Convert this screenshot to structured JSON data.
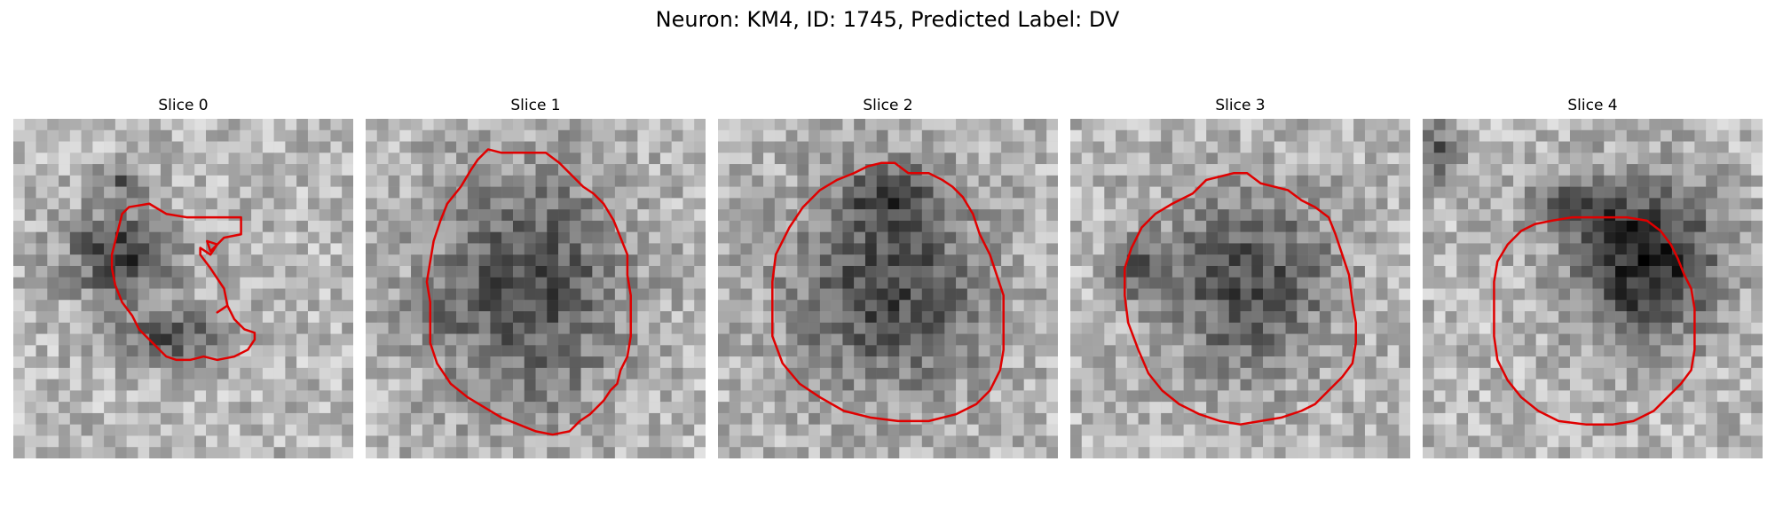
{
  "figure": {
    "title": "Neuron: KM4, ID: 1745, Predicted Label: DV",
    "overlay_color": "#e00000",
    "image_colormap": "grayscale",
    "panels": [
      {
        "title": "Slice 0",
        "dark_blobs": [
          [
            0.32,
            0.4,
            0.2,
            0.16,
            0.48
          ],
          [
            0.46,
            0.64,
            0.2,
            0.1,
            0.4
          ],
          [
            0.32,
            0.18,
            0.1,
            0.06,
            0.3
          ]
        ],
        "contour": [
          [
            0.34,
            0.26
          ],
          [
            0.4,
            0.25
          ],
          [
            0.45,
            0.28
          ],
          [
            0.51,
            0.29
          ],
          [
            0.67,
            0.29
          ],
          [
            0.67,
            0.34
          ],
          [
            0.62,
            0.35
          ],
          [
            0.6,
            0.37
          ],
          [
            0.57,
            0.36
          ],
          [
            0.58,
            0.39
          ],
          [
            0.6,
            0.37
          ],
          [
            0.58,
            0.4
          ],
          [
            0.55,
            0.38
          ],
          [
            0.55,
            0.4
          ],
          [
            0.58,
            0.44
          ],
          [
            0.6,
            0.47
          ],
          [
            0.62,
            0.5
          ],
          [
            0.63,
            0.55
          ],
          [
            0.6,
            0.57
          ],
          [
            0.63,
            0.55
          ],
          [
            0.65,
            0.59
          ],
          [
            0.68,
            0.62
          ],
          [
            0.71,
            0.63
          ],
          [
            0.71,
            0.65
          ],
          [
            0.69,
            0.68
          ],
          [
            0.65,
            0.7
          ],
          [
            0.6,
            0.71
          ],
          [
            0.56,
            0.7
          ],
          [
            0.52,
            0.71
          ],
          [
            0.48,
            0.71
          ],
          [
            0.45,
            0.7
          ],
          [
            0.41,
            0.66
          ],
          [
            0.37,
            0.62
          ],
          [
            0.35,
            0.58
          ],
          [
            0.32,
            0.54
          ],
          [
            0.3,
            0.49
          ],
          [
            0.29,
            0.44
          ],
          [
            0.29,
            0.4
          ],
          [
            0.3,
            0.36
          ],
          [
            0.31,
            0.32
          ],
          [
            0.32,
            0.28
          ]
        ]
      },
      {
        "title": "Slice 1",
        "dark_blobs": [
          [
            0.48,
            0.5,
            0.36,
            0.44,
            0.42
          ],
          [
            0.2,
            0.58,
            0.08,
            0.08,
            0.25
          ]
        ],
        "contour": [
          [
            0.36,
            0.09
          ],
          [
            0.4,
            0.1
          ],
          [
            0.53,
            0.1
          ],
          [
            0.57,
            0.13
          ],
          [
            0.6,
            0.16
          ],
          [
            0.64,
            0.2
          ],
          [
            0.67,
            0.22
          ],
          [
            0.7,
            0.25
          ],
          [
            0.73,
            0.3
          ],
          [
            0.75,
            0.35
          ],
          [
            0.77,
            0.4
          ],
          [
            0.77,
            0.46
          ],
          [
            0.78,
            0.52
          ],
          [
            0.78,
            0.58
          ],
          [
            0.78,
            0.64
          ],
          [
            0.77,
            0.7
          ],
          [
            0.75,
            0.74
          ],
          [
            0.74,
            0.78
          ],
          [
            0.72,
            0.8
          ],
          [
            0.7,
            0.83
          ],
          [
            0.66,
            0.87
          ],
          [
            0.63,
            0.89
          ],
          [
            0.6,
            0.92
          ],
          [
            0.55,
            0.93
          ],
          [
            0.5,
            0.92
          ],
          [
            0.45,
            0.9
          ],
          [
            0.4,
            0.88
          ],
          [
            0.35,
            0.85
          ],
          [
            0.3,
            0.82
          ],
          [
            0.25,
            0.78
          ],
          [
            0.21,
            0.72
          ],
          [
            0.19,
            0.66
          ],
          [
            0.19,
            0.6
          ],
          [
            0.19,
            0.54
          ],
          [
            0.18,
            0.48
          ],
          [
            0.19,
            0.42
          ],
          [
            0.2,
            0.36
          ],
          [
            0.22,
            0.3
          ],
          [
            0.24,
            0.25
          ],
          [
            0.28,
            0.2
          ],
          [
            0.31,
            0.15
          ],
          [
            0.33,
            0.12
          ]
        ]
      },
      {
        "title": "Slice 2",
        "dark_blobs": [
          [
            0.5,
            0.5,
            0.36,
            0.4,
            0.44
          ],
          [
            0.5,
            0.22,
            0.16,
            0.1,
            0.3
          ]
        ],
        "contour": [
          [
            0.4,
            0.16
          ],
          [
            0.44,
            0.14
          ],
          [
            0.48,
            0.13
          ],
          [
            0.52,
            0.13
          ],
          [
            0.56,
            0.16
          ],
          [
            0.62,
            0.16
          ],
          [
            0.66,
            0.18
          ],
          [
            0.69,
            0.2
          ],
          [
            0.72,
            0.23
          ],
          [
            0.75,
            0.28
          ],
          [
            0.77,
            0.34
          ],
          [
            0.8,
            0.4
          ],
          [
            0.82,
            0.46
          ],
          [
            0.84,
            0.52
          ],
          [
            0.84,
            0.6
          ],
          [
            0.84,
            0.68
          ],
          [
            0.83,
            0.74
          ],
          [
            0.8,
            0.8
          ],
          [
            0.76,
            0.84
          ],
          [
            0.7,
            0.87
          ],
          [
            0.62,
            0.89
          ],
          [
            0.53,
            0.89
          ],
          [
            0.45,
            0.88
          ],
          [
            0.37,
            0.86
          ],
          [
            0.3,
            0.82
          ],
          [
            0.24,
            0.78
          ],
          [
            0.19,
            0.72
          ],
          [
            0.16,
            0.64
          ],
          [
            0.16,
            0.56
          ],
          [
            0.16,
            0.48
          ],
          [
            0.17,
            0.4
          ],
          [
            0.21,
            0.32
          ],
          [
            0.25,
            0.26
          ],
          [
            0.3,
            0.21
          ],
          [
            0.35,
            0.18
          ]
        ]
      },
      {
        "title": "Slice 3",
        "dark_blobs": [
          [
            0.52,
            0.48,
            0.32,
            0.34,
            0.42
          ],
          [
            0.2,
            0.44,
            0.09,
            0.1,
            0.32
          ]
        ],
        "contour": [
          [
            0.36,
            0.22
          ],
          [
            0.4,
            0.18
          ],
          [
            0.44,
            0.17
          ],
          [
            0.48,
            0.16
          ],
          [
            0.52,
            0.16
          ],
          [
            0.56,
            0.19
          ],
          [
            0.6,
            0.2
          ],
          [
            0.64,
            0.21
          ],
          [
            0.68,
            0.24
          ],
          [
            0.72,
            0.26
          ],
          [
            0.76,
            0.29
          ],
          [
            0.78,
            0.34
          ],
          [
            0.8,
            0.4
          ],
          [
            0.82,
            0.46
          ],
          [
            0.83,
            0.54
          ],
          [
            0.84,
            0.6
          ],
          [
            0.84,
            0.66
          ],
          [
            0.83,
            0.72
          ],
          [
            0.8,
            0.76
          ],
          [
            0.76,
            0.8
          ],
          [
            0.72,
            0.84
          ],
          [
            0.68,
            0.86
          ],
          [
            0.62,
            0.88
          ],
          [
            0.56,
            0.89
          ],
          [
            0.5,
            0.9
          ],
          [
            0.44,
            0.89
          ],
          [
            0.38,
            0.87
          ],
          [
            0.32,
            0.84
          ],
          [
            0.27,
            0.8
          ],
          [
            0.23,
            0.75
          ],
          [
            0.2,
            0.68
          ],
          [
            0.17,
            0.6
          ],
          [
            0.16,
            0.52
          ],
          [
            0.16,
            0.44
          ],
          [
            0.18,
            0.38
          ],
          [
            0.21,
            0.32
          ],
          [
            0.25,
            0.28
          ],
          [
            0.3,
            0.25
          ]
        ]
      },
      {
        "title": "Slice 4",
        "dark_blobs": [
          [
            0.66,
            0.42,
            0.26,
            0.28,
            0.62
          ],
          [
            0.44,
            0.26,
            0.18,
            0.1,
            0.3
          ],
          [
            0.06,
            0.1,
            0.08,
            0.1,
            0.4
          ]
        ],
        "contour": [
          [
            0.38,
            0.3
          ],
          [
            0.44,
            0.29
          ],
          [
            0.52,
            0.29
          ],
          [
            0.6,
            0.29
          ],
          [
            0.66,
            0.3
          ],
          [
            0.7,
            0.33
          ],
          [
            0.73,
            0.37
          ],
          [
            0.75,
            0.41
          ],
          [
            0.77,
            0.46
          ],
          [
            0.79,
            0.5
          ],
          [
            0.8,
            0.56
          ],
          [
            0.8,
            0.62
          ],
          [
            0.8,
            0.68
          ],
          [
            0.79,
            0.74
          ],
          [
            0.76,
            0.78
          ],
          [
            0.72,
            0.82
          ],
          [
            0.68,
            0.86
          ],
          [
            0.62,
            0.89
          ],
          [
            0.56,
            0.9
          ],
          [
            0.48,
            0.9
          ],
          [
            0.4,
            0.89
          ],
          [
            0.34,
            0.86
          ],
          [
            0.29,
            0.82
          ],
          [
            0.25,
            0.77
          ],
          [
            0.22,
            0.71
          ],
          [
            0.21,
            0.64
          ],
          [
            0.21,
            0.56
          ],
          [
            0.21,
            0.48
          ],
          [
            0.22,
            0.42
          ],
          [
            0.25,
            0.37
          ],
          [
            0.29,
            0.33
          ],
          [
            0.33,
            0.31
          ]
        ]
      }
    ]
  }
}
